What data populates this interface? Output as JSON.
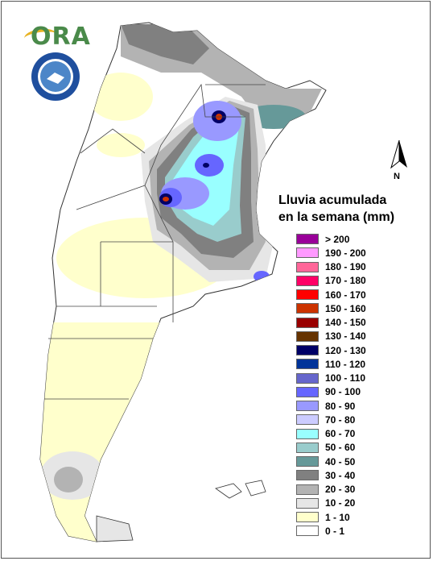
{
  "logo": {
    "text": "ORA"
  },
  "north_arrow": {
    "label": "N"
  },
  "legend": {
    "title_line1": "Lluvia acumulada",
    "title_line2": "en la semana (mm)",
    "items": [
      {
        "label": "> 200",
        "color": "#990099"
      },
      {
        "label": "190 - 200",
        "color": "#ff99ff"
      },
      {
        "label": "180 - 190",
        "color": "#ff6699"
      },
      {
        "label": "170 - 180",
        "color": "#ff0066"
      },
      {
        "label": "160 - 170",
        "color": "#ff0000"
      },
      {
        "label": "150 - 160",
        "color": "#cc3300"
      },
      {
        "label": "140 - 150",
        "color": "#990000"
      },
      {
        "label": "130 - 140",
        "color": "#663300"
      },
      {
        "label": "120 - 130",
        "color": "#000066"
      },
      {
        "label": "110 - 120",
        "color": "#003399"
      },
      {
        "label": "100 - 110",
        "color": "#6666cc"
      },
      {
        "label": "90 - 100",
        "color": "#6666ff"
      },
      {
        "label": "80 - 90",
        "color": "#9999ff"
      },
      {
        "label": "70 - 80",
        "color": "#ccccff"
      },
      {
        "label": "60 - 70",
        "color": "#99ffff"
      },
      {
        "label": "50 - 60",
        "color": "#99cccc"
      },
      {
        "label": "40 - 50",
        "color": "#669999"
      },
      {
        "label": "30 - 40",
        "color": "#808080"
      },
      {
        "label": "20 - 30",
        "color": "#b3b3b3"
      },
      {
        "label": "10 - 20",
        "color": "#e6e6e6"
      },
      {
        "label": "1 - 10",
        "color": "#ffffcc"
      },
      {
        "label": "0 - 1",
        "color": "#ffffff"
      }
    ]
  }
}
